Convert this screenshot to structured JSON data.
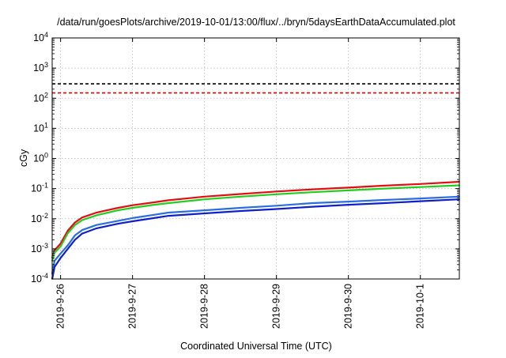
{
  "chart_data": {
    "type": "line",
    "title": "/data/run/goesPlots/archive/2019-10-01/13:00/flux/../bryn/5daysEarthDataAccumulated.plot",
    "xlabel": "Coordinated Universal Time (UTC)",
    "ylabel": "cGy",
    "y_scale": "log",
    "ylim": [
      0.0001,
      10000
    ],
    "y_ticks": [
      {
        "value": 0.0001,
        "base": "10",
        "exp": "-4"
      },
      {
        "value": 0.001,
        "base": "10",
        "exp": "-3"
      },
      {
        "value": 0.01,
        "base": "10",
        "exp": "-2"
      },
      {
        "value": 0.1,
        "base": "10",
        "exp": "-1"
      },
      {
        "value": 1,
        "base": "10",
        "exp": "0"
      },
      {
        "value": 10,
        "base": "10",
        "exp": "1"
      },
      {
        "value": 100,
        "base": "10",
        "exp": "2"
      },
      {
        "value": 1000,
        "base": "10",
        "exp": "3"
      },
      {
        "value": 10000,
        "base": "10",
        "exp": "4"
      }
    ],
    "xlim": [
      "2019-09-25T21:12",
      "2019-10-01T13:00"
    ],
    "x_ticks": [
      {
        "value": "2019-09-26T00:00",
        "label": "2019-9-26"
      },
      {
        "value": "2019-09-27T00:00",
        "label": "2019-9-27"
      },
      {
        "value": "2019-09-28T00:00",
        "label": "2019-9-28"
      },
      {
        "value": "2019-09-29T00:00",
        "label": "2019-9-29"
      },
      {
        "value": "2019-09-30T00:00",
        "label": "2019-9-30"
      },
      {
        "value": "2019-10-01T00:00",
        "label": "2019-10-1"
      }
    ],
    "grid": true,
    "reference_lines": [
      {
        "y": 300,
        "color": "#000000",
        "style": "dashed"
      },
      {
        "y": 150,
        "color": "#e00000",
        "style": "dashed"
      }
    ],
    "series": [
      {
        "color": "#e01010",
        "points": [
          [
            "2019-09-25T21:12",
            0.0005
          ],
          [
            "2019-09-25T22:00",
            0.0009
          ],
          [
            "2019-09-26T00:00",
            0.0015
          ],
          [
            "2019-09-26T02:24",
            0.004
          ],
          [
            "2019-09-26T04:48",
            0.0075
          ],
          [
            "2019-09-26T07:12",
            0.011
          ],
          [
            "2019-09-26T12:00",
            0.016
          ],
          [
            "2019-09-26T19:12",
            0.023
          ],
          [
            "2019-09-27T00:00",
            0.028
          ],
          [
            "2019-09-27T07:12",
            0.035
          ],
          [
            "2019-09-27T12:00",
            0.041
          ],
          [
            "2019-09-28T00:00",
            0.054
          ],
          [
            "2019-09-28T12:00",
            0.066
          ],
          [
            "2019-09-29T00:00",
            0.08
          ],
          [
            "2019-09-29T12:00",
            0.094
          ],
          [
            "2019-09-30T00:00",
            0.108
          ],
          [
            "2019-09-30T12:00",
            0.125
          ],
          [
            "2019-10-01T00:00",
            0.142
          ],
          [
            "2019-10-01T13:00",
            0.168
          ]
        ]
      },
      {
        "color": "#22cc22",
        "points": [
          [
            "2019-09-25T21:12",
            0.0004
          ],
          [
            "2019-09-25T22:00",
            0.00075
          ],
          [
            "2019-09-26T00:00",
            0.0012
          ],
          [
            "2019-09-26T02:24",
            0.0033
          ],
          [
            "2019-09-26T04:48",
            0.0062
          ],
          [
            "2019-09-26T07:12",
            0.009
          ],
          [
            "2019-09-26T12:00",
            0.013
          ],
          [
            "2019-09-26T19:12",
            0.019
          ],
          [
            "2019-09-27T00:00",
            0.023
          ],
          [
            "2019-09-27T07:12",
            0.029
          ],
          [
            "2019-09-27T12:00",
            0.033
          ],
          [
            "2019-09-28T00:00",
            0.044
          ],
          [
            "2019-09-28T12:00",
            0.054
          ],
          [
            "2019-09-29T00:00",
            0.065
          ],
          [
            "2019-09-29T12:00",
            0.076
          ],
          [
            "2019-09-30T00:00",
            0.087
          ],
          [
            "2019-09-30T12:00",
            0.1
          ],
          [
            "2019-10-01T00:00",
            0.112
          ],
          [
            "2019-10-01T13:00",
            0.128
          ]
        ]
      },
      {
        "color": "#2a6ee0",
        "points": [
          [
            "2019-09-25T21:12",
            0.00015
          ],
          [
            "2019-09-25T22:00",
            0.0004
          ],
          [
            "2019-09-26T00:00",
            0.0007
          ],
          [
            "2019-09-26T02:24",
            0.0013
          ],
          [
            "2019-09-26T04:48",
            0.0028
          ],
          [
            "2019-09-26T07:12",
            0.0042
          ],
          [
            "2019-09-26T12:00",
            0.0062
          ],
          [
            "2019-09-26T19:12",
            0.0085
          ],
          [
            "2019-09-27T00:00",
            0.0105
          ],
          [
            "2019-09-27T07:12",
            0.0135
          ],
          [
            "2019-09-27T12:00",
            0.016
          ],
          [
            "2019-09-28T00:00",
            0.019
          ],
          [
            "2019-09-28T12:00",
            0.023
          ],
          [
            "2019-09-29T00:00",
            0.027
          ],
          [
            "2019-09-29T12:00",
            0.033
          ],
          [
            "2019-09-30T00:00",
            0.037
          ],
          [
            "2019-09-30T12:00",
            0.042
          ],
          [
            "2019-10-01T00:00",
            0.047
          ],
          [
            "2019-10-01T13:00",
            0.054
          ]
        ]
      },
      {
        "color": "#1020c8",
        "points": [
          [
            "2019-09-25T21:12",
            0.0001
          ],
          [
            "2019-09-25T22:00",
            0.00025
          ],
          [
            "2019-09-26T00:00",
            0.0005
          ],
          [
            "2019-09-26T02:24",
            0.001
          ],
          [
            "2019-09-26T04:48",
            0.002
          ],
          [
            "2019-09-26T07:12",
            0.0032
          ],
          [
            "2019-09-26T12:00",
            0.0048
          ],
          [
            "2019-09-26T19:12",
            0.0068
          ],
          [
            "2019-09-27T00:00",
            0.0082
          ],
          [
            "2019-09-27T07:12",
            0.0105
          ],
          [
            "2019-09-27T12:00",
            0.0125
          ],
          [
            "2019-09-28T00:00",
            0.015
          ],
          [
            "2019-09-28T12:00",
            0.018
          ],
          [
            "2019-09-29T00:00",
            0.021
          ],
          [
            "2019-09-29T12:00",
            0.025
          ],
          [
            "2019-09-30T00:00",
            0.029
          ],
          [
            "2019-09-30T12:00",
            0.033
          ],
          [
            "2019-10-01T00:00",
            0.038
          ],
          [
            "2019-10-01T13:00",
            0.044
          ]
        ]
      }
    ]
  }
}
